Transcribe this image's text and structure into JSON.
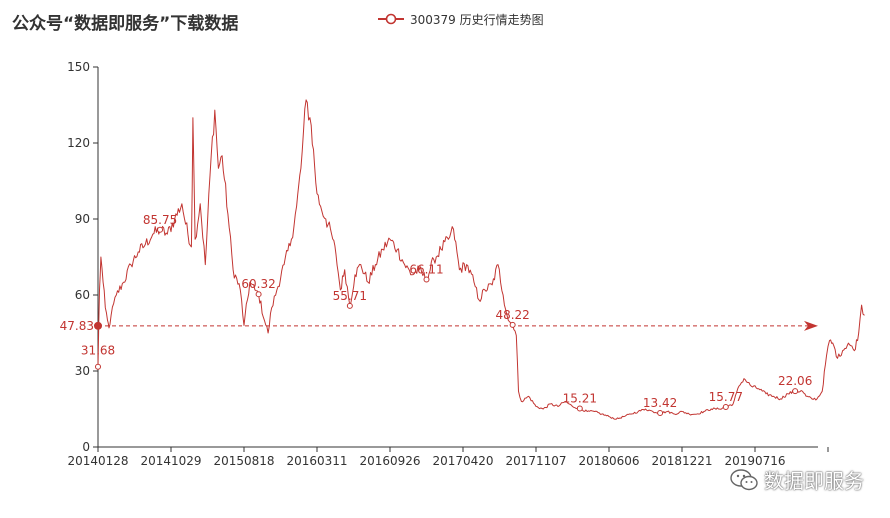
{
  "title": "公众号“数据即服务”下载数据",
  "legend": {
    "label": "300379 历史行情走势图"
  },
  "watermark": {
    "text": "数据即服务"
  },
  "colors": {
    "series": "#c23531",
    "axis": "#333333",
    "grid": "#dddddd"
  },
  "chart_data": {
    "type": "line",
    "title": "公众号“数据即服务”下载数据",
    "series_name": "300379 历史行情走势图",
    "ylim": [
      0,
      150
    ],
    "y_ticks": [
      0,
      30,
      60,
      90,
      120,
      150
    ],
    "x_tick_labels": [
      "20140128",
      "20141029",
      "20150818",
      "20160311",
      "20160926",
      "20170420",
      "20171107",
      "20180606",
      "20181221",
      "20190716"
    ],
    "grid": false,
    "legend_position": "top-center",
    "keypoints": [
      [
        0,
        31.68
      ],
      [
        0.02,
        62
      ],
      [
        0.04,
        75
      ],
      [
        0.07,
        65
      ],
      [
        0.1,
        55
      ],
      [
        0.13,
        50
      ],
      [
        0.15,
        47
      ],
      [
        0.18,
        52
      ],
      [
        0.25,
        60
      ],
      [
        0.35,
        65
      ],
      [
        0.45,
        72
      ],
      [
        0.55,
        77
      ],
      [
        0.65,
        80
      ],
      [
        0.75,
        84
      ],
      [
        0.85,
        85.75
      ],
      [
        0.95,
        84
      ],
      [
        1.05,
        90
      ],
      [
        1.15,
        96
      ],
      [
        1.2,
        88
      ],
      [
        1.28,
        79
      ],
      [
        1.3,
        130
      ],
      [
        1.33,
        82
      ],
      [
        1.4,
        96
      ],
      [
        1.47,
        72
      ],
      [
        1.55,
        115
      ],
      [
        1.6,
        133
      ],
      [
        1.65,
        110
      ],
      [
        1.7,
        115
      ],
      [
        1.78,
        92
      ],
      [
        1.85,
        70
      ],
      [
        1.95,
        62
      ],
      [
        2.0,
        48
      ],
      [
        2.08,
        65
      ],
      [
        2.15,
        62
      ],
      [
        2.2,
        60.32
      ],
      [
        2.28,
        50
      ],
      [
        2.33,
        45
      ],
      [
        2.38,
        55
      ],
      [
        2.45,
        62
      ],
      [
        2.55,
        72
      ],
      [
        2.65,
        82
      ],
      [
        2.72,
        95
      ],
      [
        2.78,
        110
      ],
      [
        2.85,
        137
      ],
      [
        2.92,
        127
      ],
      [
        3.0,
        100
      ],
      [
        3.05,
        95
      ],
      [
        3.12,
        90
      ],
      [
        3.2,
        84
      ],
      [
        3.26,
        76
      ],
      [
        3.32,
        62
      ],
      [
        3.38,
        70
      ],
      [
        3.45,
        55.71
      ],
      [
        3.52,
        68
      ],
      [
        3.6,
        72
      ],
      [
        3.7,
        65
      ],
      [
        3.8,
        72
      ],
      [
        3.9,
        78
      ],
      [
        4.0,
        82
      ],
      [
        4.1,
        78
      ],
      [
        4.2,
        72
      ],
      [
        4.3,
        68
      ],
      [
        4.4,
        70
      ],
      [
        4.5,
        66.11
      ],
      [
        4.6,
        74
      ],
      [
        4.7,
        78
      ],
      [
        4.8,
        82
      ],
      [
        4.87,
        86
      ],
      [
        4.95,
        70
      ],
      [
        5.05,
        72
      ],
      [
        5.15,
        65
      ],
      [
        5.22,
        58
      ],
      [
        5.3,
        62
      ],
      [
        5.4,
        64
      ],
      [
        5.48,
        72
      ],
      [
        5.55,
        60
      ],
      [
        5.62,
        50
      ],
      [
        5.68,
        48.22
      ],
      [
        5.73,
        44
      ],
      [
        5.76,
        22
      ],
      [
        5.8,
        18
      ],
      [
        5.9,
        20
      ],
      [
        6.0,
        16
      ],
      [
        6.1,
        15
      ],
      [
        6.2,
        17
      ],
      [
        6.3,
        16
      ],
      [
        6.4,
        18
      ],
      [
        6.5,
        16
      ],
      [
        6.6,
        15.21
      ],
      [
        6.7,
        14
      ],
      [
        6.8,
        14
      ],
      [
        6.9,
        13
      ],
      [
        7.0,
        12
      ],
      [
        7.1,
        11
      ],
      [
        7.2,
        12
      ],
      [
        7.3,
        13
      ],
      [
        7.4,
        14
      ],
      [
        7.5,
        15
      ],
      [
        7.6,
        14
      ],
      [
        7.7,
        13.42
      ],
      [
        7.8,
        14
      ],
      [
        7.9,
        13
      ],
      [
        8.0,
        14
      ],
      [
        8.1,
        13
      ],
      [
        8.2,
        13
      ],
      [
        8.3,
        14
      ],
      [
        8.4,
        15
      ],
      [
        8.5,
        15
      ],
      [
        8.6,
        15.77
      ],
      [
        8.7,
        17
      ],
      [
        8.78,
        24
      ],
      [
        8.85,
        27
      ],
      [
        8.95,
        24
      ],
      [
        9.05,
        23
      ],
      [
        9.15,
        21
      ],
      [
        9.25,
        20
      ],
      [
        9.35,
        19
      ],
      [
        9.45,
        21
      ],
      [
        9.55,
        22.06
      ],
      [
        9.65,
        22
      ],
      [
        9.7,
        20
      ],
      [
        9.78,
        19
      ],
      [
        9.85,
        19
      ],
      [
        9.92,
        22
      ],
      [
        9.98,
        36
      ],
      [
        10.02,
        42
      ],
      [
        10.08,
        40
      ],
      [
        10.13,
        35
      ],
      [
        10.2,
        38
      ],
      [
        10.28,
        41
      ],
      [
        10.36,
        38
      ],
      [
        10.42,
        45
      ],
      [
        10.46,
        56
      ],
      [
        10.5,
        52
      ]
    ],
    "point_labels": [
      {
        "x": 0.0,
        "y": 31.68,
        "text": "31.68"
      },
      {
        "x": 0.85,
        "y": 85.75,
        "text": "85.75"
      },
      {
        "x": 2.2,
        "y": 60.32,
        "text": "60.32"
      },
      {
        "x": 3.45,
        "y": 55.71,
        "text": "55.71"
      },
      {
        "x": 4.5,
        "y": 66.11,
        "text": "66.11"
      },
      {
        "x": 5.68,
        "y": 48.22,
        "text": "48.22"
      },
      {
        "x": 6.6,
        "y": 15.21,
        "text": "15.21"
      },
      {
        "x": 7.7,
        "y": 13.42,
        "text": "13.42"
      },
      {
        "x": 8.6,
        "y": 15.77,
        "text": "15.77"
      },
      {
        "x": 9.55,
        "y": 22.06,
        "text": "22.06"
      }
    ],
    "mark_line": {
      "value": 47.83,
      "label": "47.83"
    }
  }
}
